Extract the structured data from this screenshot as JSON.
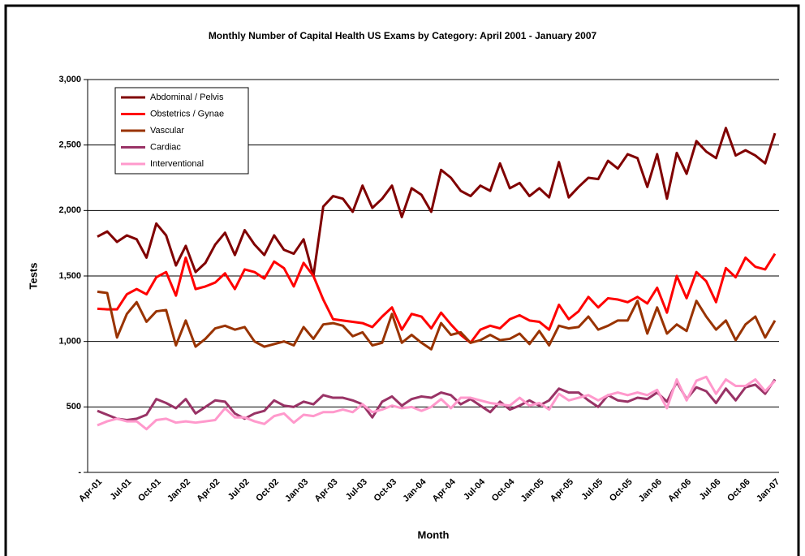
{
  "chart_data": {
    "type": "line",
    "title": "Monthly Number of Capital Health US Exams by Category: April 2001 - January 2007",
    "x_label": "Month",
    "y_label": "Tests",
    "categories": [
      "Apr-01",
      null,
      null,
      "Jul-01",
      null,
      null,
      "Oct-01",
      null,
      null,
      "Jan-02",
      null,
      null,
      "Apr-02",
      null,
      null,
      "Jul-02",
      null,
      null,
      "Oct-02",
      null,
      null,
      "Jan-03",
      null,
      null,
      "Apr-03",
      null,
      null,
      "Jul-03",
      null,
      null,
      "Oct-03",
      null,
      null,
      "Jan-04",
      null,
      null,
      "Apr-04",
      null,
      null,
      "Jul-04",
      null,
      null,
      "Oct-04",
      null,
      null,
      "Jan-05",
      null,
      null,
      "Apr-05",
      null,
      null,
      "Jul-05",
      null,
      null,
      "Oct-05",
      null,
      null,
      "Jan-06",
      null,
      null,
      "Apr-06",
      null,
      null,
      "Jul-06",
      null,
      null,
      "Oct-06",
      null,
      null,
      "Jan-07"
    ],
    "ylim": [
      0,
      3000
    ],
    "yticks": [
      {
        "value": 0,
        "label": "-"
      },
      500,
      {
        "value": 1000,
        "label": "1,000"
      },
      {
        "value": 1500,
        "label": "1,500"
      },
      {
        "value": 2000,
        "label": "2,000"
      },
      {
        "value": 2500,
        "label": "2,500"
      },
      {
        "value": 3000,
        "label": "3,000"
      }
    ],
    "grid": true,
    "legend": "upper left",
    "series": [
      {
        "name": "Abdominal / Pelvis",
        "color": "#800000",
        "values": [
          1800,
          1840,
          1760,
          1810,
          1780,
          1640,
          1900,
          1810,
          1580,
          1730,
          1530,
          1600,
          1740,
          1830,
          1660,
          1850,
          1740,
          1660,
          1810,
          1700,
          1670,
          1780,
          1500,
          2030,
          2110,
          2090,
          1990,
          2190,
          2020,
          2090,
          2190,
          1950,
          2170,
          2120,
          1990,
          2310,
          2250,
          2150,
          2110,
          2190,
          2150,
          2360,
          2170,
          2210,
          2110,
          2170,
          2100,
          2370,
          2100,
          2180,
          2250,
          2240,
          2380,
          2320,
          2430,
          2400,
          2180,
          2430,
          2090,
          2440,
          2280,
          2530,
          2450,
          2400,
          2630,
          2420,
          2460,
          2420,
          2360,
          2590
        ]
      },
      {
        "name": "Obstetrics / Gynae",
        "color": "#ff0000",
        "values": [
          1250,
          1245,
          1245,
          1360,
          1400,
          1360,
          1490,
          1530,
          1350,
          1640,
          1400,
          1420,
          1450,
          1520,
          1400,
          1550,
          1530,
          1480,
          1610,
          1560,
          1420,
          1600,
          1500,
          1320,
          1170,
          1160,
          1150,
          1140,
          1110,
          1190,
          1260,
          1090,
          1210,
          1190,
          1100,
          1220,
          1130,
          1050,
          990,
          1090,
          1120,
          1100,
          1170,
          1200,
          1160,
          1150,
          1090,
          1280,
          1170,
          1230,
          1340,
          1260,
          1330,
          1320,
          1300,
          1340,
          1290,
          1410,
          1220,
          1500,
          1330,
          1530,
          1460,
          1300,
          1560,
          1490,
          1640,
          1570,
          1550,
          1670
        ]
      },
      {
        "name": "Vascular",
        "color": "#993300",
        "values": [
          1380,
          1370,
          1030,
          1210,
          1300,
          1150,
          1230,
          1240,
          970,
          1160,
          960,
          1020,
          1100,
          1120,
          1090,
          1110,
          1000,
          960,
          980,
          1000,
          970,
          1110,
          1020,
          1130,
          1140,
          1120,
          1040,
          1070,
          970,
          990,
          1210,
          990,
          1050,
          990,
          940,
          1140,
          1050,
          1070,
          990,
          1010,
          1050,
          1010,
          1020,
          1060,
          980,
          1080,
          970,
          1120,
          1100,
          1110,
          1190,
          1090,
          1120,
          1160,
          1160,
          1310,
          1060,
          1260,
          1060,
          1130,
          1080,
          1310,
          1190,
          1090,
          1160,
          1010,
          1130,
          1190,
          1030,
          1160
        ]
      },
      {
        "name": "Cardiac",
        "color": "#993366",
        "values": [
          470,
          440,
          410,
          400,
          410,
          440,
          560,
          530,
          490,
          560,
          450,
          500,
          550,
          540,
          450,
          410,
          450,
          470,
          550,
          510,
          500,
          540,
          520,
          590,
          570,
          570,
          550,
          520,
          420,
          540,
          580,
          510,
          560,
          580,
          570,
          610,
          590,
          520,
          560,
          510,
          460,
          540,
          480,
          510,
          550,
          510,
          550,
          640,
          610,
          610,
          550,
          500,
          590,
          550,
          540,
          570,
          560,
          610,
          540,
          690,
          560,
          650,
          620,
          530,
          640,
          550,
          650,
          670,
          600,
          710
        ]
      },
      {
        "name": "Interventional",
        "color": "#ff99cc",
        "values": [
          360,
          390,
          410,
          390,
          390,
          330,
          400,
          410,
          380,
          390,
          380,
          390,
          400,
          490,
          420,
          420,
          390,
          370,
          430,
          450,
          380,
          440,
          430,
          460,
          460,
          480,
          460,
          520,
          460,
          480,
          510,
          490,
          500,
          470,
          500,
          560,
          490,
          570,
          570,
          550,
          530,
          520,
          510,
          570,
          510,
          530,
          480,
          600,
          550,
          570,
          590,
          550,
          590,
          610,
          590,
          610,
          590,
          630,
          490,
          710,
          550,
          700,
          730,
          600,
          710,
          660,
          660,
          710,
          620,
          700
        ]
      }
    ]
  }
}
